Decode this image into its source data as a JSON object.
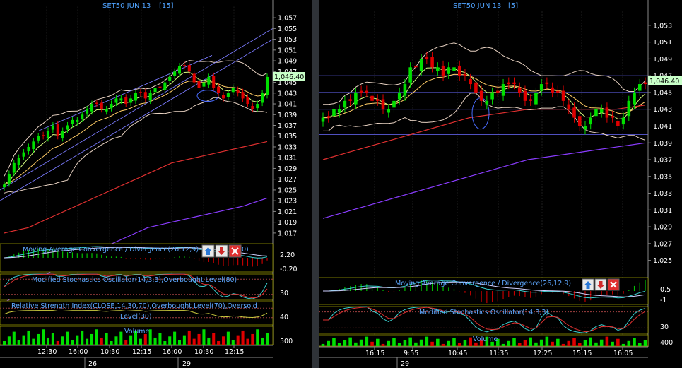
{
  "panels": [
    {
      "title": "SET50 JUN 13",
      "interval": "[15]",
      "price_labels": [
        "1,057",
        "1,055",
        "1,053",
        "1,051",
        "1,049",
        "1,047",
        "1,045",
        "1,043",
        "1,041",
        "1,039",
        "1,037",
        "1,035",
        "1,033",
        "1,031",
        "1,029",
        "1,027",
        "1,025",
        "1,023",
        "1,021",
        "1,019",
        "1,017"
      ],
      "last_price": "1,046.40",
      "time_labels": [
        "12:30",
        "16:00",
        "10:30",
        "12:15",
        "16:00",
        "10:30",
        "12:15"
      ],
      "date_labels": [
        "26",
        "29"
      ],
      "indicators": {
        "macd": "Moving Average Convergence / Divergence(26,12,9)",
        "macd_tail": "0)",
        "macd_ticks": [
          "2.20",
          "-0.20"
        ],
        "stoch": "Modified Stochastics Oscillator(14,3,3),Overbought Level(80)",
        "stoch_ticks": [
          "30"
        ],
        "rsi_line1": "Relative Strength Index(CLOSE,14,30,70),Overbought Level(70),Oversold",
        "rsi_line2": "Level(30)",
        "rsi_ticks": [
          "40"
        ],
        "volume": "Volume",
        "volume_ticks": [
          "500"
        ]
      }
    },
    {
      "title": "SET50 JUN 13",
      "interval": "[5]",
      "price_labels": [
        "1,053",
        "1,051",
        "1,049",
        "1,047",
        "1,045",
        "1,043",
        "1,041",
        "1,039",
        "1,037",
        "1,035",
        "1,033",
        "1,031",
        "1,029",
        "1,027",
        "1,025"
      ],
      "last_price": "1,046.40",
      "time_labels": [
        "16:15",
        "9:55",
        "10:45",
        "11:35",
        "12:25",
        "15:15",
        "16:05"
      ],
      "date_labels": [
        "29"
      ],
      "indicators": {
        "macd": "Moving Average Convergence / Divergence(26,12,9)",
        "macd_ticks": [
          "0.5",
          "-1"
        ],
        "stoch": "Modified Stochastics Oscillator(14,3,3)",
        "stoch_ticks": [
          "30"
        ],
        "volume": "Volume",
        "volume_ticks": [
          "400"
        ]
      }
    }
  ],
  "toolbar": {
    "up_icon": "arrow-up-icon",
    "down_icon": "arrow-down-icon",
    "close_icon": "close-icon"
  },
  "colors": {
    "up": "#00e000",
    "down": "#e00000",
    "price_label": "#c8ffc8",
    "axis_text": "#ffffff",
    "title": "#4fa3ff",
    "grid": "#2a3a55"
  },
  "chart_data": [
    {
      "type": "candlestick",
      "title": "SET50 JUN 13 [15]",
      "ylim": [
        1016,
        1058
      ],
      "closes": [
        1026,
        1028,
        1030,
        1031,
        1032,
        1033,
        1034,
        1035,
        1035,
        1036,
        1037,
        1035,
        1036,
        1037,
        1038,
        1038,
        1039,
        1040,
        1041,
        1041,
        1040,
        1040,
        1041,
        1042,
        1042,
        1041,
        1042,
        1043,
        1043,
        1042,
        1043,
        1044,
        1044,
        1045,
        1046,
        1047,
        1048,
        1048,
        1047,
        1045,
        1044,
        1045,
        1046,
        1044,
        1043,
        1042,
        1043,
        1044,
        1043,
        1042,
        1041,
        1040,
        1041,
        1043,
        1046
      ]
    },
    {
      "type": "candlestick",
      "title": "SET50 JUN 13 [5]",
      "ylim": [
        1024,
        1054
      ],
      "closes": [
        1042,
        1042,
        1043,
        1043,
        1044,
        1044,
        1045,
        1045,
        1045,
        1044,
        1044,
        1043,
        1043,
        1044,
        1045,
        1046,
        1048,
        1048,
        1049,
        1049,
        1048,
        1048,
        1047,
        1048,
        1048,
        1047,
        1047,
        1046,
        1045,
        1044,
        1044,
        1045,
        1045,
        1046,
        1046,
        1046,
        1045,
        1044,
        1044,
        1045,
        1046,
        1046,
        1045,
        1045,
        1044,
        1043,
        1042,
        1041,
        1041,
        1042,
        1043,
        1043,
        1042,
        1042,
        1041,
        1042,
        1044,
        1045,
        1046,
        1046
      ]
    }
  ]
}
